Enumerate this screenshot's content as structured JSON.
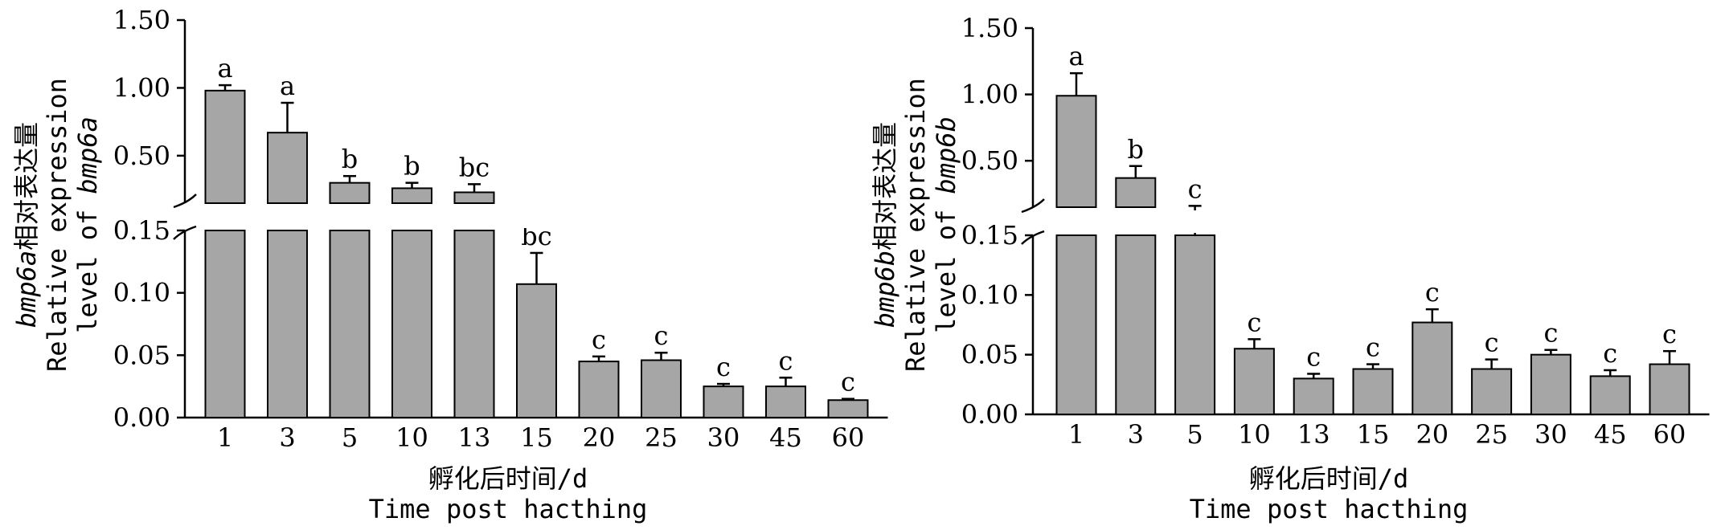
{
  "chart_data": [
    {
      "type": "bar",
      "categories": [
        "1",
        "3",
        "5",
        "10",
        "13",
        "15",
        "20",
        "25",
        "30",
        "45",
        "60"
      ],
      "values": [
        0.98,
        0.67,
        0.3,
        0.26,
        0.23,
        0.107,
        0.045,
        0.046,
        0.025,
        0.025,
        0.014
      ],
      "errors": [
        0.04,
        0.22,
        0.05,
        0.04,
        0.06,
        0.025,
        0.004,
        0.006,
        0.002,
        0.007,
        0.001
      ],
      "significance": [
        "a",
        "a",
        "b",
        "b",
        "bc",
        "bc",
        "c",
        "c",
        "c",
        "c",
        "c"
      ],
      "xlabel_cn": "孵化后时间/d",
      "xlabel_en": "Time post hacthing",
      "ylabel_gene": "bmp6a",
      "ylabel_cn": "相对表达量",
      "ylabel_en1": "Relative expression",
      "ylabel_en2": "level of ",
      "ylabel_en2_gene": "bmp6a",
      "broken_axis": true,
      "ylim_lower": [
        0,
        0.15
      ],
      "ylim_upper": [
        0.15,
        1.5
      ],
      "yticks_lower": [
        "0.00",
        "0.05",
        "0.10",
        "0.15"
      ],
      "yticks_upper": [
        "0.50",
        "1.00",
        "1.50"
      ]
    },
    {
      "type": "bar",
      "categories": [
        "1",
        "3",
        "5",
        "10",
        "13",
        "15",
        "20",
        "25",
        "30",
        "45",
        "60"
      ],
      "values": [
        0.99,
        0.37,
        0.15,
        0.055,
        0.03,
        0.038,
        0.077,
        0.038,
        0.05,
        0.032,
        0.042
      ],
      "errors": [
        0.17,
        0.09,
        0.01,
        0.008,
        0.004,
        0.004,
        0.011,
        0.008,
        0.004,
        0.005,
        0.011
      ],
      "significance": [
        "a",
        "b",
        "c",
        "c",
        "c",
        "c",
        "c",
        "c",
        "c",
        "c",
        "c"
      ],
      "xlabel_cn": "孵化后时间/d",
      "xlabel_en": "Time post hacthing",
      "ylabel_gene": "bmp6b",
      "ylabel_cn": "相对表达量",
      "ylabel_en1": "Relative expression",
      "ylabel_en2": "level of ",
      "ylabel_en2_gene": "bmp6b",
      "broken_axis": true,
      "ylim_lower": [
        0,
        0.15
      ],
      "ylim_upper": [
        0.15,
        1.5
      ],
      "yticks_lower": [
        "0.00",
        "0.05",
        "0.10",
        "0.15"
      ],
      "yticks_upper": [
        "0.50",
        "1.00",
        "1.50"
      ]
    }
  ],
  "style": {
    "bar_fill": "#a6a6a6",
    "bar_stroke": "#000000",
    "axis_color": "#000000"
  }
}
